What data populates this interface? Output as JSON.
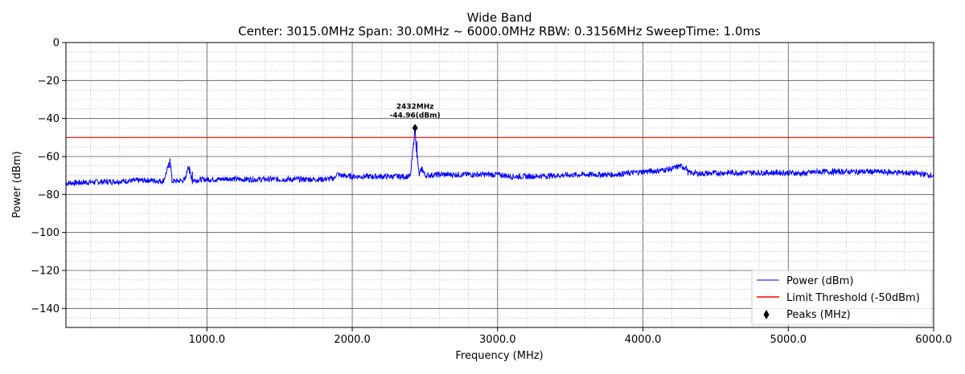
{
  "chart_data": {
    "type": "line",
    "title": "Wide Band",
    "subtitle": "Center: 3015.0MHz    Span: 30.0MHz ~ 6000.0MHz    RBW: 0.3156MHz    SweepTime: 1.0ms",
    "xlabel": "Frequency (MHz)",
    "ylabel": "Power (dBm)",
    "xlim": [
      30,
      6000
    ],
    "ylim": [
      -150,
      0
    ],
    "x_ticks": [
      1000,
      2000,
      3000,
      4000,
      5000,
      6000
    ],
    "x_tick_labels": [
      "1000.0",
      "2000.0",
      "3000.0",
      "4000.0",
      "5000.0",
      "6000.0"
    ],
    "y_ticks": [
      0,
      -20,
      -40,
      -60,
      -80,
      -100,
      -120,
      -140
    ],
    "y_tick_labels": [
      "0",
      "−20",
      "−40",
      "−60",
      "−80",
      "−100",
      "−120",
      "−140"
    ],
    "grid": true,
    "legend_position": "bottom-right",
    "series": [
      {
        "name": "Power (dBm)",
        "color": "#0000ff",
        "x": [
          30,
          200,
          400,
          600,
          700,
          740,
          745,
          750,
          760,
          780,
          850,
          870,
          880,
          900,
          1000,
          1100,
          1150,
          1200,
          1400,
          1600,
          1800,
          1880,
          1890,
          1920,
          2000,
          2200,
          2400,
          2432,
          2440,
          2460,
          2480,
          2500,
          2600,
          2800,
          3000,
          3100,
          3200,
          3400,
          3600,
          3800,
          4000,
          4100,
          4200,
          4250,
          4300,
          4310,
          4400,
          4600,
          4800,
          5000,
          5100,
          5200,
          5400,
          5600,
          5800,
          5900,
          6000
        ],
        "y": [
          -74,
          -73.5,
          -73,
          -72.5,
          -73,
          -64,
          -61,
          -64,
          -73,
          -73,
          -72.5,
          -65,
          -67,
          -72.5,
          -72,
          -72,
          -71.5,
          -72,
          -72,
          -72,
          -72,
          -71.5,
          -69,
          -70,
          -70.5,
          -70.5,
          -70.5,
          -44.96,
          -55,
          -70,
          -66,
          -70,
          -69.5,
          -69.5,
          -69.5,
          -70.5,
          -70.5,
          -70,
          -69.5,
          -69.5,
          -68,
          -67.5,
          -66.5,
          -65,
          -66,
          -68.5,
          -69,
          -68.5,
          -68.5,
          -68.5,
          -69,
          -68,
          -68,
          -68,
          -68.5,
          -69,
          -70
        ]
      },
      {
        "name": "Limit Threshold (-50dBm)",
        "color": "#ff0000",
        "x": [
          30,
          6000
        ],
        "y": [
          -50,
          -50
        ]
      }
    ],
    "peaks": {
      "name": "Peaks (MHz)",
      "color": "#000000",
      "points": [
        {
          "x": 2432,
          "y": -44.96,
          "label_freq": "2432MHz",
          "label_power": "-44.96(dBm)"
        }
      ]
    }
  }
}
